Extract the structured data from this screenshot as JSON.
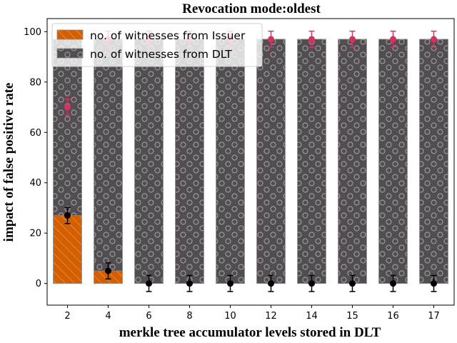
{
  "chart_data": {
    "type": "bar",
    "title": "Revocation mode:oldest",
    "xlabel": "merkle tree accumulator levels stored in DLT",
    "ylabel": "impact of false positive rate",
    "categories": [
      "2",
      "4",
      "6",
      "8",
      "10",
      "12",
      "14",
      "15",
      "16",
      "17"
    ],
    "ylim": [
      -8.6,
      105.2
    ],
    "yticks": [
      0,
      20,
      40,
      60,
      80,
      100
    ],
    "grid": false,
    "legend_position": "top-left",
    "stacked": true,
    "series": [
      {
        "name": "no. of witnesses from Issuer",
        "color": "#d45f00",
        "pattern": "diagonal-hatch",
        "values": [
          27,
          5,
          0,
          0,
          0,
          0,
          0,
          0,
          0,
          0
        ],
        "error": [
          3.2,
          3.2,
          3.2,
          3.2,
          3.2,
          3.2,
          3.2,
          3.2,
          3.2,
          3.2
        ],
        "marker_color": "#000000"
      },
      {
        "name": "no. of witnesses from DLT",
        "color": "#514d51",
        "pattern": "circles",
        "values": [
          70,
          92,
          97,
          97,
          97,
          97,
          97,
          97,
          97,
          97
        ],
        "error_centers": [
          70,
          97,
          97,
          97,
          97,
          97,
          97,
          97,
          97,
          97
        ],
        "error": [
          3.2,
          3.2,
          3.2,
          3.2,
          3.2,
          3.2,
          3.2,
          3.2,
          3.2,
          3.2
        ],
        "marker_color": "#d6335c"
      }
    ]
  }
}
